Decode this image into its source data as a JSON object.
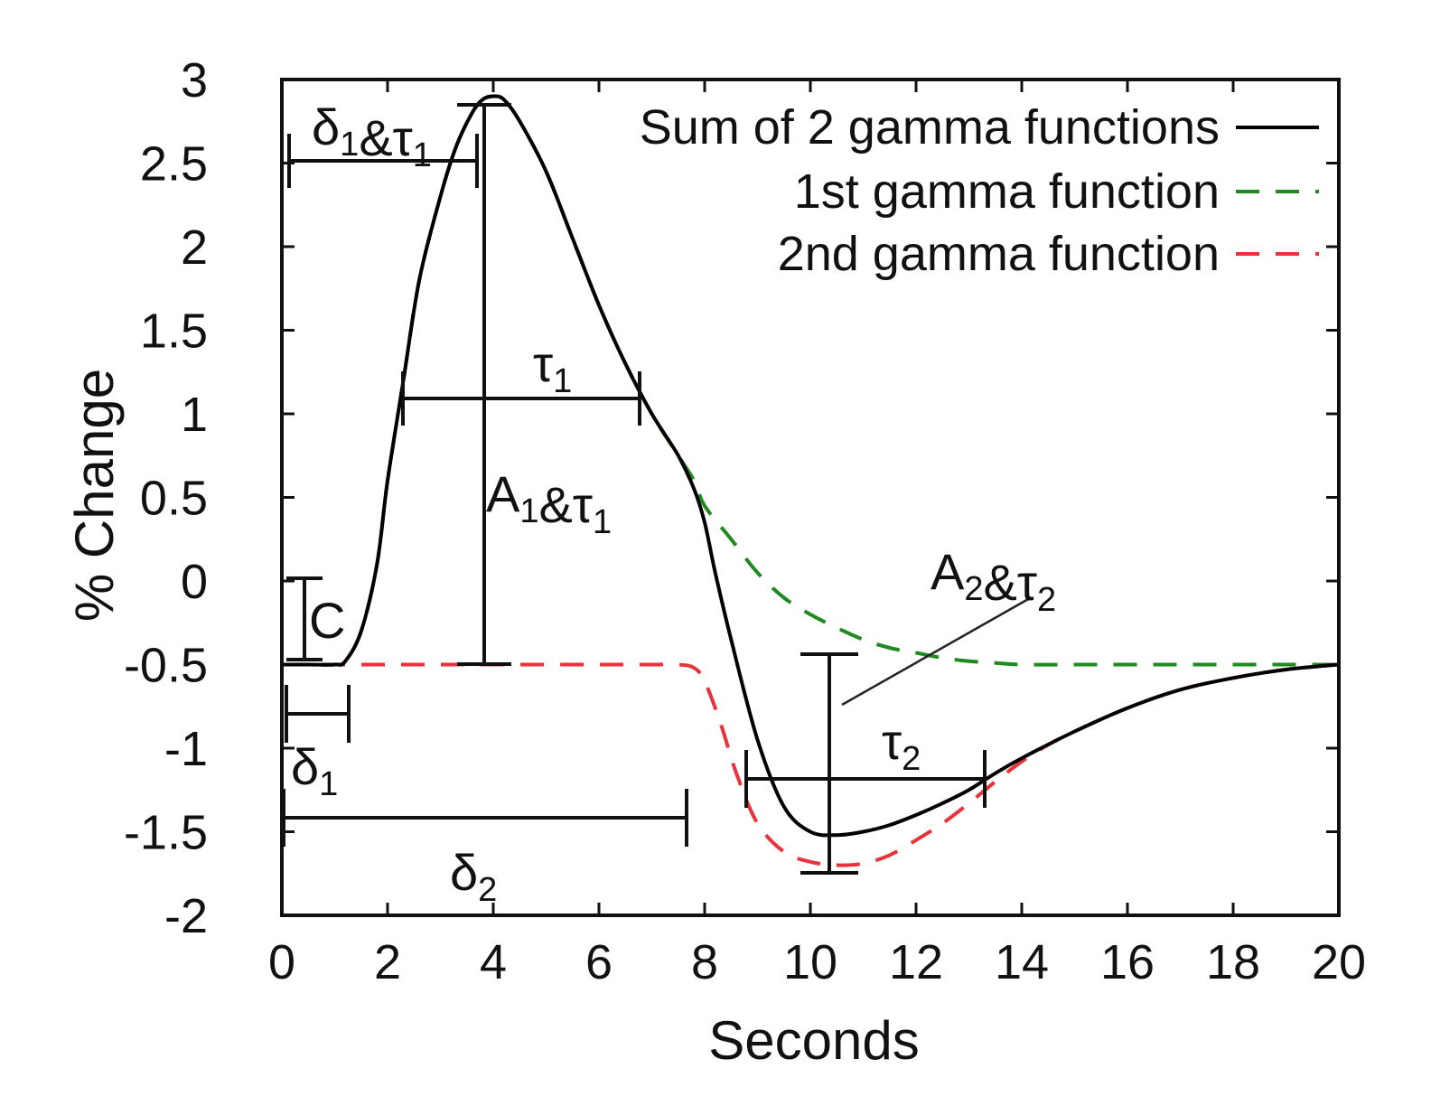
{
  "chart_data": {
    "type": "line",
    "title": "",
    "xlabel": "Seconds",
    "ylabel": "% Change",
    "xlim": [
      0,
      20
    ],
    "ylim": [
      -2,
      3
    ],
    "x_ticks": [
      0,
      2,
      4,
      6,
      8,
      10,
      12,
      14,
      16,
      18,
      20
    ],
    "y_ticks": [
      -2,
      -1.5,
      -1,
      -0.5,
      0,
      0.5,
      1,
      1.5,
      2,
      2.5,
      3
    ],
    "x_tick_labels": [
      "0",
      "2",
      "4",
      "6",
      "8",
      "10",
      "12",
      "14",
      "16",
      "18",
      "20"
    ],
    "y_tick_labels": [
      "-2",
      "-1.5",
      "-1",
      "-0.5",
      "0",
      "0.5",
      "1",
      "1.5",
      "2",
      "2.5",
      "3"
    ],
    "grid": false,
    "legend_position": "top-right",
    "series": [
      {
        "name": "Sum of 2 gamma functions",
        "color": "#000000",
        "style": "solid",
        "x": [
          0,
          0.5,
          1,
          1.2,
          1.5,
          1.8,
          2,
          2.3,
          2.6,
          3,
          3.3,
          3.6,
          3.8,
          4,
          4.2,
          4.5,
          5,
          5.5,
          6,
          6.5,
          7,
          7.5,
          7.8,
          8,
          8.2,
          8.5,
          9,
          9.5,
          10,
          10.5,
          11,
          11.5,
          12,
          12.5,
          13,
          13.5,
          14,
          15,
          16,
          17,
          18,
          19,
          20
        ],
        "y": [
          -0.5,
          -0.5,
          -0.5,
          -0.48,
          -0.3,
          0.1,
          0.6,
          1.2,
          1.8,
          2.3,
          2.6,
          2.8,
          2.88,
          2.9,
          2.88,
          2.75,
          2.45,
          2.05,
          1.65,
          1.3,
          1.0,
          0.75,
          0.55,
          0.35,
          0.05,
          -0.35,
          -0.95,
          -1.35,
          -1.5,
          -1.52,
          -1.5,
          -1.46,
          -1.4,
          -1.33,
          -1.25,
          -1.15,
          -1.06,
          -0.9,
          -0.76,
          -0.65,
          -0.58,
          -0.53,
          -0.5
        ]
      },
      {
        "name": "1st gamma function",
        "color": "#1f8a1f",
        "style": "dashed",
        "x": [
          0,
          0.5,
          1,
          1.2,
          1.5,
          1.8,
          2,
          2.3,
          2.6,
          3,
          3.3,
          3.6,
          3.8,
          4,
          4.2,
          4.5,
          5,
          5.5,
          6,
          6.5,
          7,
          7.5,
          7.8,
          8,
          8.5,
          9,
          9.5,
          10,
          10.5,
          11,
          11.5,
          12,
          12.5,
          13,
          13.5,
          14,
          15,
          16,
          17,
          18,
          19,
          20
        ],
        "y": [
          -0.5,
          -0.5,
          -0.5,
          -0.48,
          -0.3,
          0.1,
          0.6,
          1.2,
          1.8,
          2.3,
          2.6,
          2.8,
          2.88,
          2.9,
          2.88,
          2.75,
          2.45,
          2.05,
          1.65,
          1.3,
          1.0,
          0.75,
          0.6,
          0.45,
          0.25,
          0.05,
          -0.1,
          -0.2,
          -0.28,
          -0.35,
          -0.4,
          -0.43,
          -0.46,
          -0.48,
          -0.49,
          -0.5,
          -0.5,
          -0.5,
          -0.5,
          -0.5,
          -0.5,
          -0.5
        ]
      },
      {
        "name": "2nd gamma function",
        "color": "#e8323c",
        "style": "dashed",
        "x": [
          0,
          2,
          4,
          6,
          7,
          7.5,
          7.8,
          8,
          8.3,
          8.6,
          9,
          9.5,
          10,
          10.5,
          11,
          11.5,
          12,
          12.5,
          13,
          13.5,
          14,
          14.5,
          15,
          16,
          17,
          18,
          19,
          20
        ],
        "y": [
          -0.5,
          -0.5,
          -0.5,
          -0.5,
          -0.5,
          -0.5,
          -0.52,
          -0.6,
          -0.85,
          -1.15,
          -1.45,
          -1.62,
          -1.68,
          -1.7,
          -1.69,
          -1.64,
          -1.55,
          -1.45,
          -1.33,
          -1.2,
          -1.08,
          -0.98,
          -0.9,
          -0.76,
          -0.65,
          -0.58,
          -0.53,
          -0.5
        ]
      }
    ],
    "annotations": [
      {
        "id": "d1t1",
        "text": "δ1&τ1"
      },
      {
        "id": "c",
        "text": "C"
      },
      {
        "id": "d1",
        "text": "δ1"
      },
      {
        "id": "d2",
        "text": "δ2"
      },
      {
        "id": "t1",
        "text": "τ1"
      },
      {
        "id": "a1t1",
        "text": "A1&τ1"
      },
      {
        "id": "a2t2",
        "text": "A2&τ2"
      },
      {
        "id": "t2",
        "text": "τ2"
      }
    ]
  }
}
